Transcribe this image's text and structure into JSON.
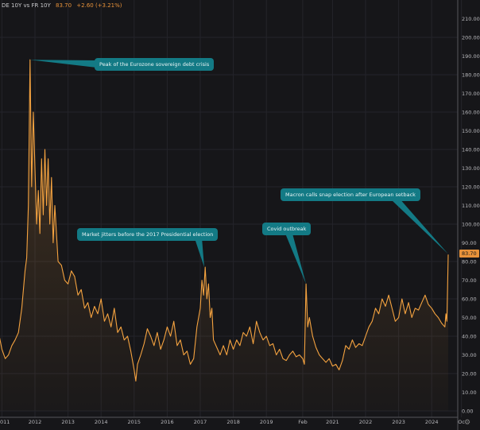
{
  "header": {
    "symbol": "DE 10Y vs FR 10Y",
    "last": "83.70",
    "change": "+2.60 (+3.21%)"
  },
  "colors": {
    "line": "#f5a340",
    "callout": "#137a85",
    "background": "#161619",
    "grid": "#24242a"
  },
  "settings_icon": "gear-icon",
  "last_value_label": "83.70",
  "annotations": [
    {
      "text": "Peak of the Eurozone sovereign debt crisis",
      "t": 2011.85,
      "v": 188
    },
    {
      "text": "Market jitters before the 2017 Presidential election",
      "t": 2017.12,
      "v": 77
    },
    {
      "text": "Covid outbreak",
      "t": 2020.2,
      "v": 68
    },
    {
      "text": "Macron calls snap election after European setback",
      "t": 2024.5,
      "v": 84
    }
  ],
  "chart_data": {
    "type": "area",
    "title": "DE 10Y vs FR 10Y",
    "xlabel": "",
    "ylabel": "",
    "ylim": [
      0,
      210
    ],
    "xlim": [
      2010.9,
      2024.95
    ],
    "grid": true,
    "yticks": [
      "0.00",
      "10.00",
      "20.00",
      "30.00",
      "40.00",
      "50.00",
      "60.00",
      "70.00",
      "80.00",
      "90.00",
      "100.00",
      "110.00",
      "120.00",
      "130.00",
      "140.00",
      "150.00",
      "160.00",
      "170.00",
      "180.00",
      "190.00",
      "200.00",
      "210.00"
    ],
    "xticks": [
      {
        "label": "011",
        "t": 2011.0
      },
      {
        "label": "2012",
        "t": 2012
      },
      {
        "label": "2013",
        "t": 2013
      },
      {
        "label": "2014",
        "t": 2014
      },
      {
        "label": "2015",
        "t": 2015
      },
      {
        "label": "2016",
        "t": 2016
      },
      {
        "label": "2017",
        "t": 2017
      },
      {
        "label": "2018",
        "t": 2018
      },
      {
        "label": "2019",
        "t": 2019
      },
      {
        "label": "Feb",
        "t": 2020.1
      },
      {
        "label": "2021",
        "t": 2021
      },
      {
        "label": "2022",
        "t": 2022
      },
      {
        "label": "2023",
        "t": 2023
      },
      {
        "label": "2024",
        "t": 2024
      },
      {
        "label": "Oc",
        "t": 2024.9
      }
    ],
    "series": [
      {
        "name": "DE 10Y vs FR 10Y spread",
        "x": [
          2010.9,
          2011.0,
          2011.1,
          2011.2,
          2011.3,
          2011.4,
          2011.5,
          2011.6,
          2011.7,
          2011.75,
          2011.8,
          2011.85,
          2011.9,
          2011.95,
          2012.0,
          2012.05,
          2012.1,
          2012.15,
          2012.2,
          2012.25,
          2012.3,
          2012.35,
          2012.4,
          2012.45,
          2012.5,
          2012.55,
          2012.6,
          2012.7,
          2012.8,
          2012.9,
          2013.0,
          2013.1,
          2013.2,
          2013.3,
          2013.4,
          2013.5,
          2013.6,
          2013.7,
          2013.8,
          2013.9,
          2014.0,
          2014.1,
          2014.2,
          2014.3,
          2014.4,
          2014.5,
          2014.6,
          2014.7,
          2014.8,
          2014.9,
          2015.0,
          2015.05,
          2015.1,
          2015.2,
          2015.3,
          2015.4,
          2015.5,
          2015.6,
          2015.7,
          2015.8,
          2015.9,
          2016.0,
          2016.1,
          2016.2,
          2016.3,
          2016.4,
          2016.5,
          2016.6,
          2016.7,
          2016.8,
          2016.9,
          2017.0,
          2017.05,
          2017.1,
          2017.15,
          2017.2,
          2017.25,
          2017.3,
          2017.35,
          2017.4,
          2017.5,
          2017.6,
          2017.7,
          2017.8,
          2017.9,
          2018.0,
          2018.1,
          2018.2,
          2018.3,
          2018.4,
          2018.5,
          2018.6,
          2018.7,
          2018.8,
          2018.9,
          2019.0,
          2019.1,
          2019.2,
          2019.3,
          2019.4,
          2019.5,
          2019.6,
          2019.7,
          2019.8,
          2019.9,
          2020.0,
          2020.1,
          2020.15,
          2020.2,
          2020.25,
          2020.3,
          2020.4,
          2020.5,
          2020.6,
          2020.7,
          2020.8,
          2020.9,
          2021.0,
          2021.1,
          2021.2,
          2021.3,
          2021.4,
          2021.5,
          2021.6,
          2021.7,
          2021.8,
          2021.9,
          2022.0,
          2022.1,
          2022.2,
          2022.3,
          2022.4,
          2022.5,
          2022.6,
          2022.7,
          2022.8,
          2022.9,
          2023.0,
          2023.1,
          2023.2,
          2023.3,
          2023.4,
          2023.5,
          2023.6,
          2023.7,
          2023.8,
          2023.9,
          2024.0,
          2024.1,
          2024.2,
          2024.3,
          2024.4,
          2024.43,
          2024.46,
          2024.48,
          2024.5
        ],
        "y": [
          42,
          33,
          28,
          30,
          35,
          38,
          42,
          55,
          75,
          82,
          110,
          188,
          120,
          160,
          130,
          100,
          118,
          95,
          135,
          105,
          140,
          110,
          135,
          100,
          125,
          90,
          110,
          80,
          78,
          70,
          68,
          75,
          72,
          62,
          65,
          55,
          58,
          50,
          56,
          52,
          60,
          48,
          52,
          45,
          55,
          42,
          45,
          38,
          40,
          32,
          22,
          16,
          25,
          30,
          36,
          44,
          40,
          35,
          42,
          33,
          38,
          45,
          40,
          48,
          35,
          38,
          30,
          32,
          25,
          28,
          45,
          55,
          70,
          62,
          77,
          60,
          68,
          50,
          55,
          38,
          34,
          30,
          35,
          30,
          38,
          33,
          38,
          35,
          42,
          40,
          45,
          36,
          48,
          42,
          38,
          40,
          35,
          36,
          30,
          33,
          28,
          27,
          30,
          32,
          29,
          30,
          28,
          25,
          68,
          45,
          50,
          40,
          34,
          30,
          28,
          26,
          28,
          24,
          25,
          22,
          27,
          35,
          33,
          38,
          34,
          36,
          35,
          40,
          45,
          48,
          55,
          52,
          60,
          56,
          62,
          55,
          48,
          50,
          60,
          52,
          58,
          50,
          55,
          54,
          58,
          62,
          57,
          55,
          52,
          50,
          47,
          45,
          52,
          48,
          66,
          83.7
        ]
      }
    ]
  }
}
